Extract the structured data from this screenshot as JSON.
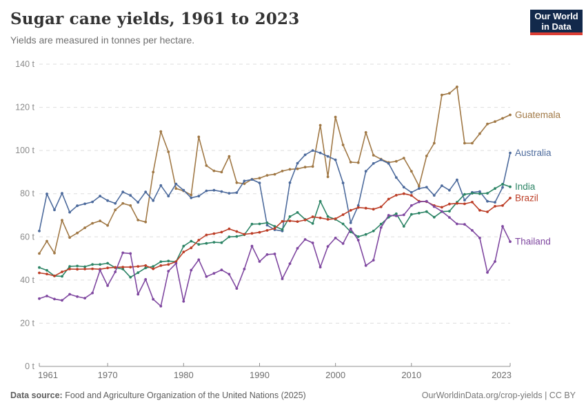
{
  "header": {
    "title": "Sugar cane yields, 1961 to 2023",
    "subtitle": "Yields are measured in tonnes per hectare."
  },
  "logo": {
    "line1": "Our World",
    "line2": "in Data"
  },
  "footer": {
    "source_label": "Data source:",
    "source_text": " Food and Agriculture Organization of the United Nations (2025)",
    "link_text": "OurWorldinData.org/crop-yields",
    "separator": " | ",
    "license_text": "CC BY"
  },
  "colors": {
    "grid": "#dddddd",
    "axis": "#8f8f8f",
    "y_tick_label": "#8a8a8a",
    "x_tick_label": "#6e6e6e",
    "logo_bg": "#12294B",
    "logo_accent": "#DC3E34"
  },
  "chart_data": {
    "type": "line",
    "title": "Sugar cane yields, 1961 to 2023",
    "ylabel": "",
    "xlabel": "",
    "unit_suffix": " t",
    "ylim": [
      0,
      140
    ],
    "y_ticks": [
      0,
      20,
      40,
      60,
      80,
      100,
      120,
      140
    ],
    "x_ticks": [
      1961,
      1970,
      1980,
      1990,
      2000,
      2010,
      2023
    ],
    "grid": true,
    "legend_position": "end-of-line",
    "x": [
      1961,
      1962,
      1963,
      1964,
      1965,
      1966,
      1967,
      1968,
      1969,
      1970,
      1971,
      1972,
      1973,
      1974,
      1975,
      1976,
      1977,
      1978,
      1979,
      1980,
      1981,
      1982,
      1983,
      1984,
      1985,
      1986,
      1987,
      1988,
      1989,
      1990,
      1991,
      1992,
      1993,
      1994,
      1995,
      1996,
      1997,
      1998,
      1999,
      2000,
      2001,
      2002,
      2003,
      2004,
      2005,
      2006,
      2007,
      2008,
      2009,
      2010,
      2011,
      2012,
      2013,
      2014,
      2015,
      2016,
      2017,
      2018,
      2019,
      2020,
      2021,
      2022,
      2023
    ],
    "series": [
      {
        "name": "Guatemala",
        "color": "#A07845",
        "values": [
          52.3,
          58.0,
          52.5,
          67.7,
          59.7,
          61.8,
          64.2,
          66.3,
          67.4,
          65.3,
          72.5,
          75.5,
          74.5,
          67.8,
          66.9,
          90.0,
          108.8,
          99.4,
          82.4,
          81.3,
          79.4,
          106.3,
          93.0,
          90.6,
          90.0,
          97.3,
          85.1,
          84.6,
          86.7,
          87.2,
          88.5,
          89.0,
          90.5,
          91.3,
          91.5,
          92.3,
          92.6,
          111.7,
          87.8,
          115.5,
          102.6,
          94.6,
          94.4,
          108.4,
          97.8,
          96.0,
          94.5,
          95.0,
          96.5,
          90.4,
          83.5,
          97.5,
          103.4,
          125.7,
          126.5,
          129.5,
          103.4,
          103.4,
          107.8,
          112.3,
          113.4,
          114.9,
          116.5
        ]
      },
      {
        "name": "Australia",
        "color": "#4C6A9C",
        "values": [
          62.7,
          79.9,
          72.5,
          80.2,
          71.4,
          74.4,
          75.3,
          76.2,
          78.9,
          76.8,
          75.5,
          80.8,
          79.2,
          76.0,
          80.8,
          76.8,
          83.8,
          78.9,
          84.5,
          81.6,
          78.1,
          78.9,
          81.3,
          81.6,
          81.0,
          80.2,
          80.5,
          85.9,
          86.6,
          85.0,
          65.4,
          63.3,
          62.7,
          85.1,
          94.1,
          98.0,
          100.0,
          98.9,
          97.3,
          95.7,
          85.0,
          66.5,
          74.5,
          90.4,
          94.0,
          95.7,
          94.0,
          87.5,
          83.0,
          80.6,
          82.4,
          83.0,
          79.2,
          83.7,
          81.6,
          86.4,
          77.0,
          80.6,
          81.0,
          76.5,
          76.0,
          82.9,
          98.9
        ]
      },
      {
        "name": "India",
        "color": "#2C8465",
        "values": [
          45.8,
          44.5,
          41.9,
          41.7,
          46.3,
          46.5,
          46.2,
          47.2,
          47.2,
          47.8,
          45.7,
          45.1,
          41.3,
          43.4,
          45.6,
          46.3,
          48.5,
          48.8,
          48.5,
          55.7,
          58.0,
          56.5,
          57.0,
          57.5,
          57.3,
          60.0,
          60.2,
          61.0,
          65.9,
          66.0,
          66.5,
          64.9,
          63.4,
          69.4,
          71.3,
          68.1,
          66.2,
          76.5,
          69.4,
          68.1,
          66.0,
          62.3,
          60.1,
          61.1,
          62.7,
          65.9,
          69.1,
          70.7,
          64.9,
          70.4,
          71.0,
          71.7,
          69.1,
          71.7,
          71.9,
          76.0,
          79.7,
          80.2,
          80.0,
          80.2,
          82.4,
          84.4,
          83.2
        ]
      },
      {
        "name": "Brazil",
        "color": "#BC3D26",
        "values": [
          43.3,
          42.8,
          41.9,
          43.8,
          45.1,
          45.0,
          45.1,
          45.2,
          45.0,
          45.6,
          45.9,
          46.0,
          46.0,
          46.3,
          46.7,
          45.2,
          46.7,
          47.2,
          48.5,
          53.0,
          54.9,
          58.5,
          60.9,
          61.5,
          62.2,
          63.7,
          62.5,
          61.2,
          61.6,
          62.1,
          63.0,
          63.9,
          67.2,
          67.4,
          67.1,
          67.8,
          69.3,
          68.8,
          68.1,
          68.4,
          70.3,
          72.3,
          73.6,
          73.3,
          72.8,
          73.9,
          77.5,
          79.3,
          80.0,
          79.2,
          76.5,
          76.3,
          74.5,
          73.7,
          75.2,
          75.5,
          75.3,
          76.1,
          72.3,
          71.6,
          74.2,
          74.5,
          78.0
        ]
      },
      {
        "name": "Thailand",
        "color": "#7F47A0",
        "values": [
          31.4,
          32.6,
          31.2,
          30.6,
          33.4,
          32.3,
          31.6,
          34.0,
          44.6,
          37.4,
          43.8,
          52.6,
          52.3,
          33.4,
          40.3,
          31.1,
          27.9,
          44.1,
          47.7,
          30.1,
          44.6,
          49.4,
          41.6,
          43.1,
          44.7,
          42.7,
          36.1,
          45.1,
          55.7,
          48.6,
          51.8,
          52.1,
          40.6,
          47.6,
          54.7,
          58.8,
          57.2,
          46.0,
          55.6,
          59.5,
          56.9,
          63.7,
          58.5,
          46.7,
          49.2,
          64.3,
          70.0,
          69.7,
          70.2,
          74.5,
          76.2,
          76.5,
          74.0,
          71.8,
          69.0,
          66.0,
          65.8,
          63.0,
          59.5,
          43.5,
          48.6,
          64.9,
          57.8
        ]
      }
    ]
  }
}
